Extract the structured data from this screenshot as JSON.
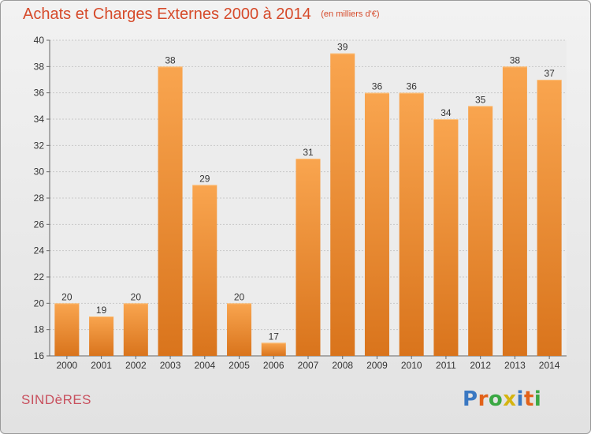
{
  "header": {
    "title": "Achats et Charges Externes 2000 à 2014",
    "subtitle": "(en milliers d'€)"
  },
  "footer": {
    "commune": "SINDèRES",
    "logo": {
      "letters": [
        "P",
        "r",
        "o",
        "x",
        "i",
        "t",
        "i"
      ],
      "colors": [
        "#3a78c2",
        "#e2621a",
        "#3aa843",
        "#d5b410",
        "#3a78c2",
        "#e2621a",
        "#3aa843"
      ]
    }
  },
  "chart_data": {
    "type": "bar",
    "title": "Achats et Charges Externes 2000 à 2014",
    "subtitle": "(en milliers d'€)",
    "categories": [
      "2000",
      "2001",
      "2002",
      "2003",
      "2004",
      "2005",
      "2006",
      "2007",
      "2008",
      "2009",
      "2010",
      "2011",
      "2012",
      "2013",
      "2014"
    ],
    "values": [
      20,
      19,
      20,
      38,
      29,
      20,
      17,
      31,
      39,
      36,
      36,
      34,
      35,
      38,
      37
    ],
    "ylim": [
      16,
      40
    ],
    "yticks": [
      16,
      18,
      20,
      22,
      24,
      26,
      28,
      30,
      32,
      34,
      36,
      38,
      40
    ],
    "grid": true,
    "colors": {
      "bar_light": "#f9a54f",
      "bar_dark": "#d9741c",
      "grid": "#c8c8c8",
      "text": "#333333",
      "title": "#d64a2a"
    }
  }
}
